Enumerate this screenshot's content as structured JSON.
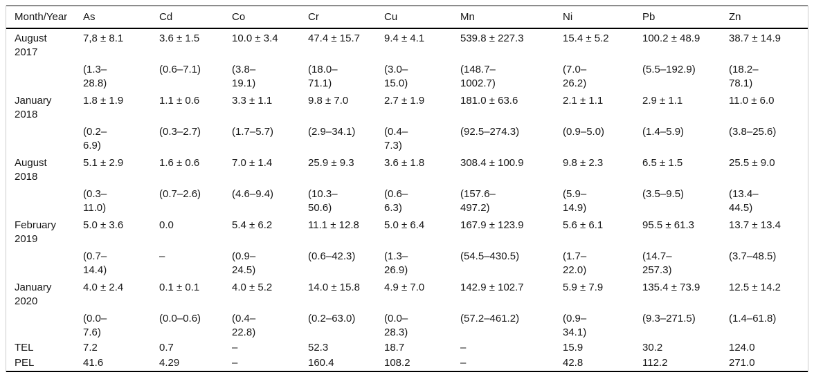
{
  "colors": {
    "background": "#ffffff",
    "text": "#161616",
    "rule_dark": "#000000",
    "rule_light": "#cccccc"
  },
  "table": {
    "columns": [
      "Month/Year",
      "As",
      "Cd",
      "Co",
      "Cr",
      "Cu",
      "Mn",
      "Ni",
      "Pb",
      "Zn"
    ],
    "groups": [
      {
        "label": "August\n2017",
        "mean": [
          "7,8 ± 8.1",
          "3.6 ± 1.5",
          "10.0 ± 3.4",
          "47.4 ± 15.7",
          "9.4 ± 4.1",
          "539.8 ± 227.3",
          "15.4 ± 5.2",
          "100.2 ± 48.9",
          "38.7 ± 14.9"
        ],
        "range": [
          "(1.3–\n28.8)",
          "(0.6–7.1)",
          "(3.8–\n19.1)",
          "(18.0–\n71.1)",
          "(3.0–\n15.0)",
          "(148.7–\n1002.7)",
          "(7.0–\n26.2)",
          "(5.5–192.9)",
          "(18.2–\n78.1)"
        ]
      },
      {
        "label": "January\n2018",
        "mean": [
          "1.8 ± 1.9",
          "1.1 ± 0.6",
          "3.3 ± 1.1",
          "9.8 ± 7.0",
          "2.7 ± 1.9",
          "181.0 ± 63.6",
          "2.1 ± 1.1",
          "2.9 ± 1.1",
          "11.0 ± 6.0"
        ],
        "range": [
          "(0.2–\n6.9)",
          "(0.3–2.7)",
          "(1.7–5.7)",
          "(2.9–34.1)",
          "(0.4–\n7.3)",
          "(92.5–274.3)",
          "(0.9–5.0)",
          "(1.4–5.9)",
          "(3.8–25.6)"
        ]
      },
      {
        "label": "August\n2018",
        "mean": [
          "5.1 ± 2.9",
          "1.6 ± 0.6",
          "7.0 ± 1.4",
          "25.9 ± 9.3",
          "3.6 ± 1.8",
          "308.4 ± 100.9",
          "9.8 ± 2.3",
          "6.5 ± 1.5",
          "25.5 ± 9.0"
        ],
        "range": [
          "(0.3–\n11.0)",
          "(0.7–2.6)",
          "(4.6–9.4)",
          "(10.3–\n50.6)",
          "(0.6–\n6.3)",
          "(157.6–\n497.2)",
          "(5.9–\n14.9)",
          "(3.5–9.5)",
          "(13.4–\n44.5)"
        ]
      },
      {
        "label": "February\n2019",
        "mean": [
          "5.0 ± 3.6",
          "0.0",
          "5.4 ± 6.2",
          "11.1 ± 12.8",
          "5.0 ± 6.4",
          "167.9 ± 123.9",
          "5.6 ± 6.1",
          "95.5 ± 61.3",
          "13.7 ± 13.4"
        ],
        "range": [
          "(0.7–\n14.4)",
          "–",
          "(0.9–\n24.5)",
          "(0.6–42.3)",
          "(1.3–\n26.9)",
          "(54.5–430.5)",
          "(1.7–\n22.0)",
          "(14.7–\n257.3)",
          "(3.7–48.5)"
        ]
      },
      {
        "label": "January\n2020",
        "mean": [
          "4.0 ± 2.4",
          "0.1 ± 0.1",
          "4.0 ± 5.2",
          "14.0 ± 15.8",
          "4.9 ± 7.0",
          "142.9 ± 102.7",
          "5.9 ± 7.9",
          "135.4 ± 73.9",
          "12.5 ± 14.2"
        ],
        "range": [
          "(0.0–\n7.6)",
          "(0.0–0.6)",
          "(0.4–\n22.8)",
          "(0.2–63.0)",
          "(0.0–\n28.3)",
          "(57.2–461.2)",
          "(0.9–\n34.1)",
          "(9.3–271.5)",
          "(1.4–61.8)"
        ]
      }
    ],
    "footer_rows": [
      {
        "label": "TEL",
        "values": [
          "7.2",
          "0.7",
          "–",
          "52.3",
          "18.7",
          "–",
          "15.9",
          "30.2",
          "124.0"
        ]
      },
      {
        "label": "PEL",
        "values": [
          "41.6",
          "4.29",
          "–",
          "160.4",
          "108.2",
          "–",
          "42.8",
          "112.2",
          "271.0"
        ]
      }
    ]
  }
}
